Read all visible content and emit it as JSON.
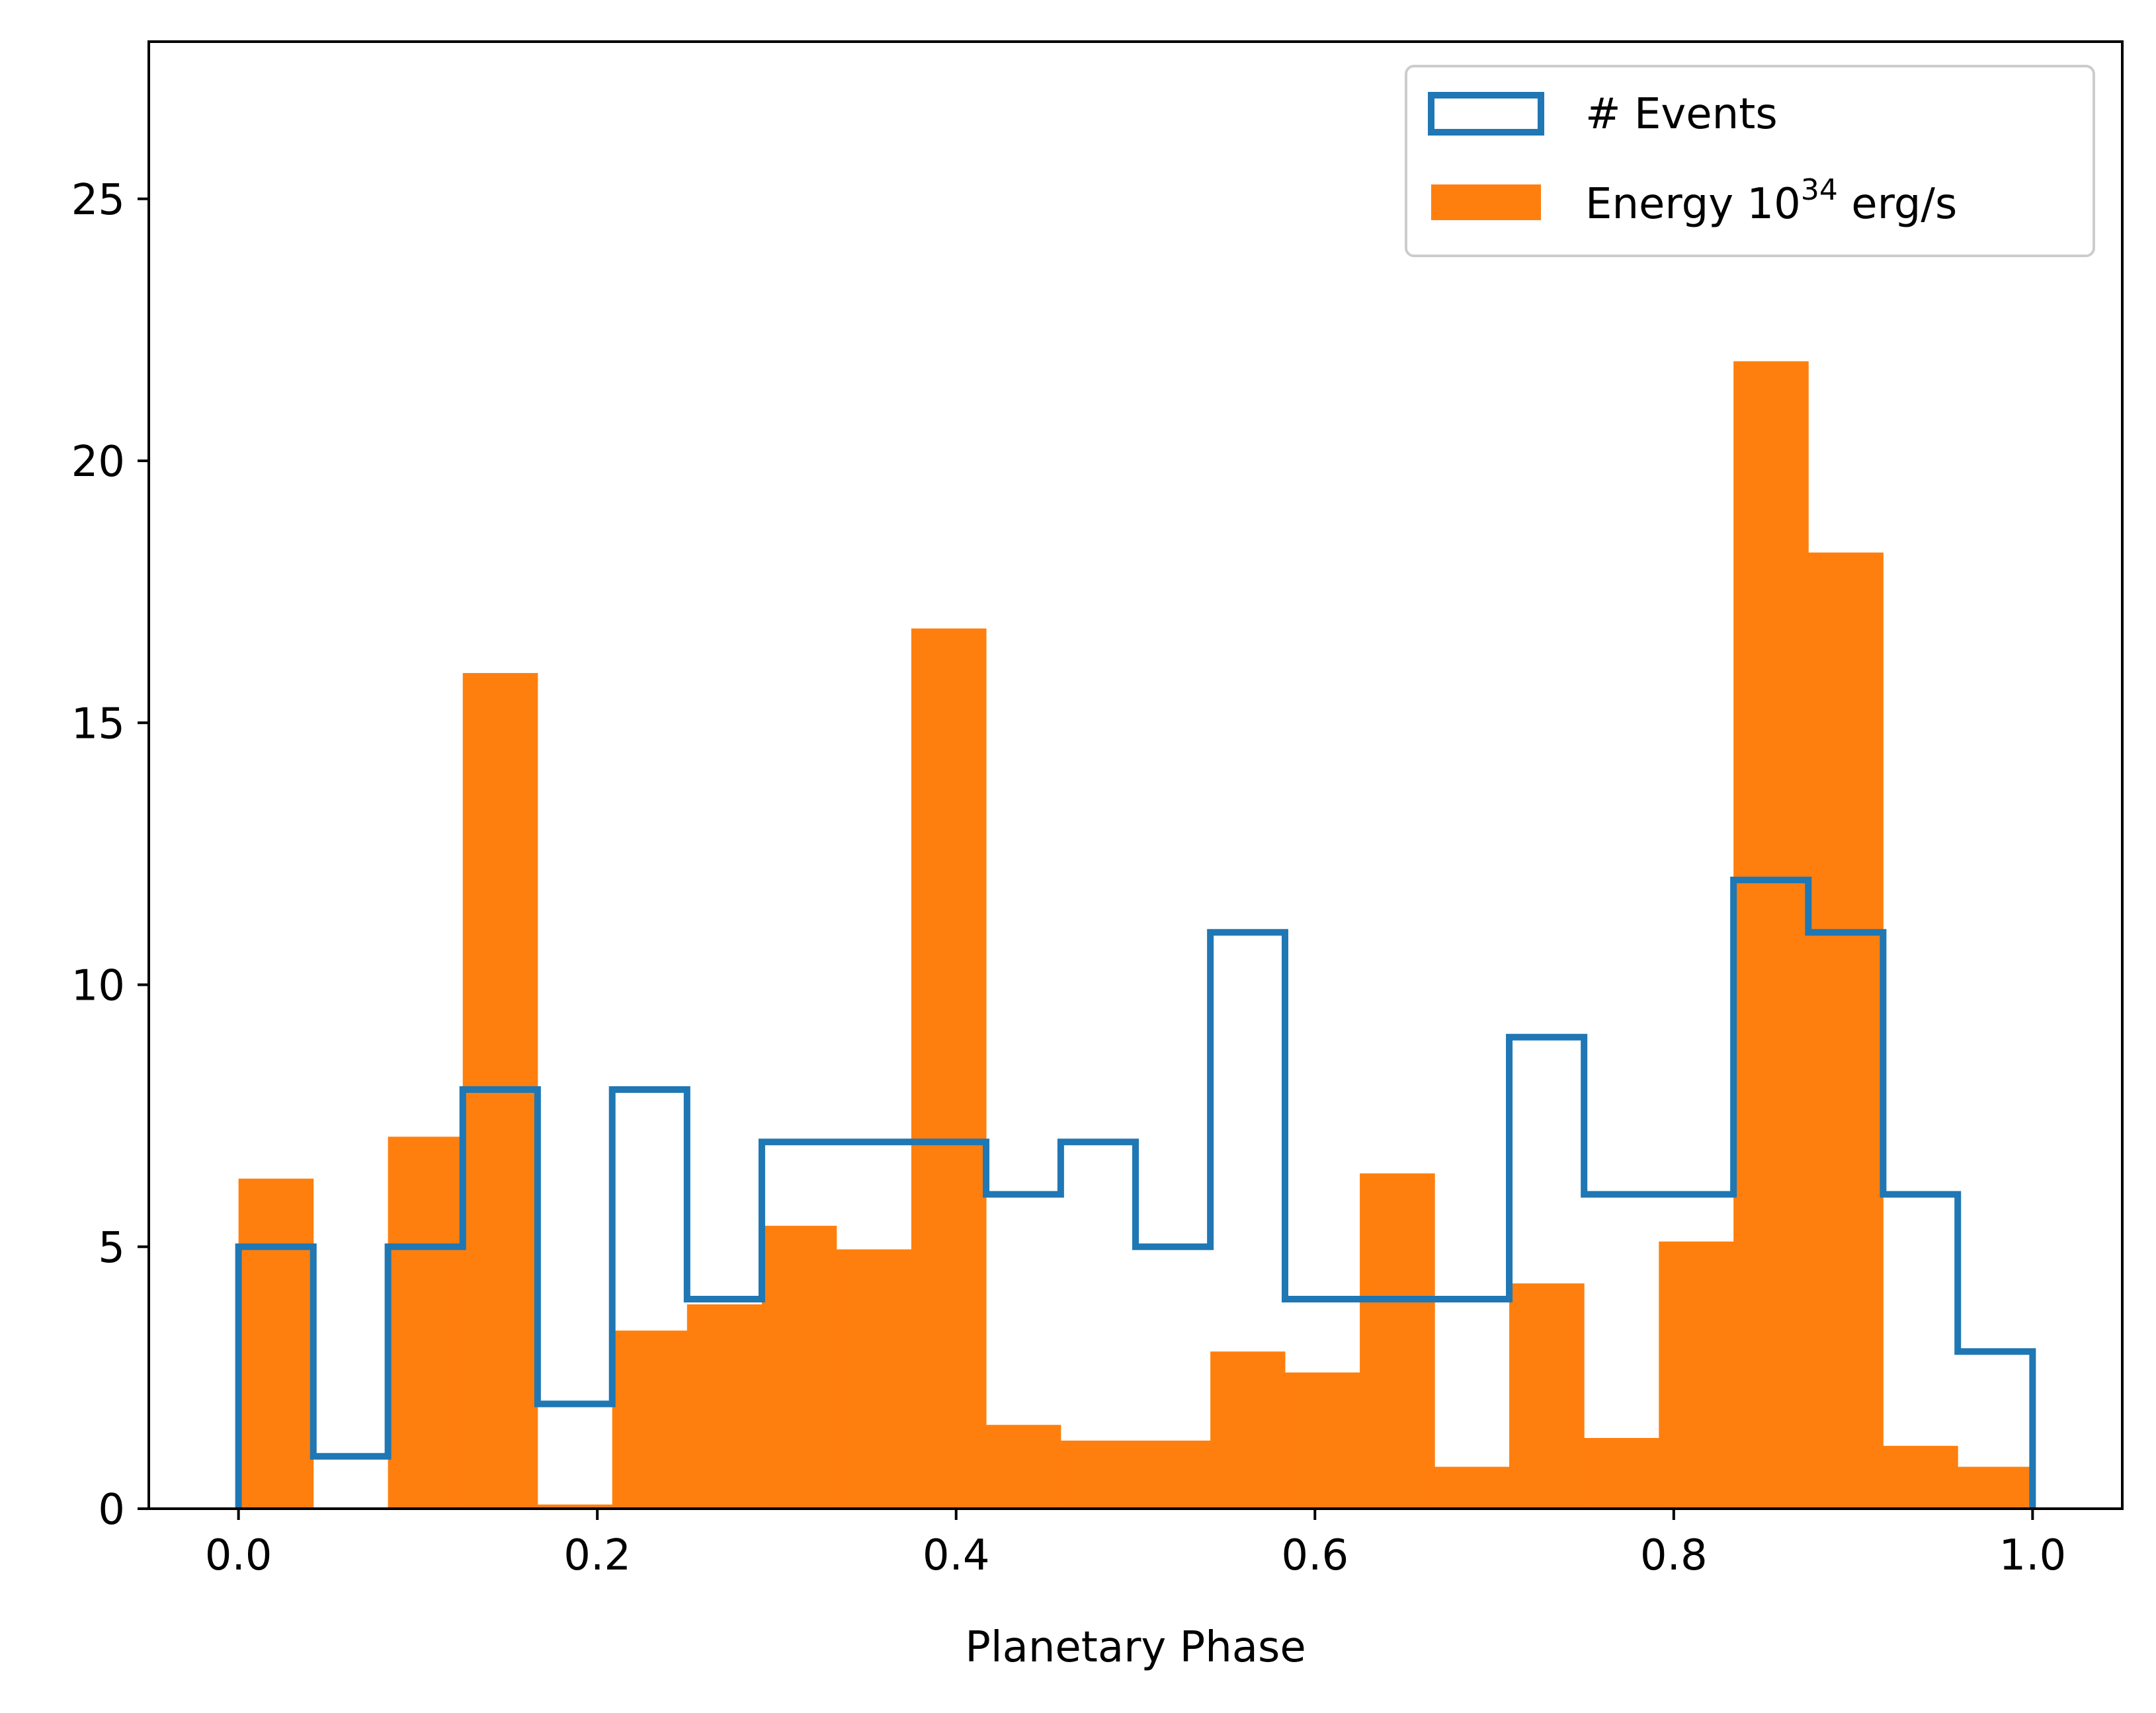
{
  "colors": {
    "events": "#1f77b4",
    "energy": "#ff7f0e",
    "axis": "#000000",
    "legend_border": "#cccccc"
  },
  "chart_data": {
    "type": "histogram",
    "title": "",
    "xlabel": "Planetary Phase",
    "ylabel": "",
    "xlim": [
      -0.05,
      1.05
    ],
    "ylim": [
      0,
      28
    ],
    "grid": false,
    "legend_position": "top-right",
    "bin_edges": [
      0.0,
      0.0417,
      0.0833,
      0.125,
      0.1667,
      0.2083,
      0.25,
      0.2917,
      0.3333,
      0.375,
      0.4167,
      0.4583,
      0.5,
      0.5417,
      0.5833,
      0.625,
      0.6667,
      0.7083,
      0.75,
      0.7917,
      0.8333,
      0.875,
      0.9167,
      0.9583,
      1.0
    ],
    "x_ticks": [
      {
        "value": 0.0,
        "label": "0.0"
      },
      {
        "value": 0.2,
        "label": "0.2"
      },
      {
        "value": 0.4,
        "label": "0.4"
      },
      {
        "value": 0.6,
        "label": "0.6"
      },
      {
        "value": 0.8,
        "label": "0.8"
      },
      {
        "value": 1.0,
        "label": "1.0"
      }
    ],
    "y_ticks": [
      {
        "value": 0,
        "label": "0"
      },
      {
        "value": 5,
        "label": "5"
      },
      {
        "value": 10,
        "label": "10"
      },
      {
        "value": 15,
        "label": "15"
      },
      {
        "value": 20,
        "label": "20"
      },
      {
        "value": 25,
        "label": "25"
      }
    ],
    "series": [
      {
        "name": "# Events",
        "style": "step",
        "values": [
          5,
          1,
          5,
          8,
          2,
          8,
          4,
          7,
          7,
          7,
          6,
          7,
          5,
          11,
          4,
          4,
          4,
          9,
          6,
          6,
          12,
          11,
          6,
          3
        ]
      },
      {
        "name": "Energy 10^34 erg/s",
        "style": "filled",
        "values": [
          6.3,
          0.0,
          7.1,
          15.95,
          0.08,
          3.4,
          3.9,
          5.4,
          4.95,
          16.8,
          1.6,
          1.3,
          1.3,
          3.0,
          2.6,
          6.4,
          0.8,
          4.3,
          1.35,
          5.1,
          21.9,
          18.25,
          1.2,
          0.8
        ]
      }
    ],
    "legend": {
      "events_label": "# Events",
      "energy_label_base": "Energy 10",
      "energy_label_exponent": "34",
      "energy_label_unit": " erg/s"
    }
  }
}
